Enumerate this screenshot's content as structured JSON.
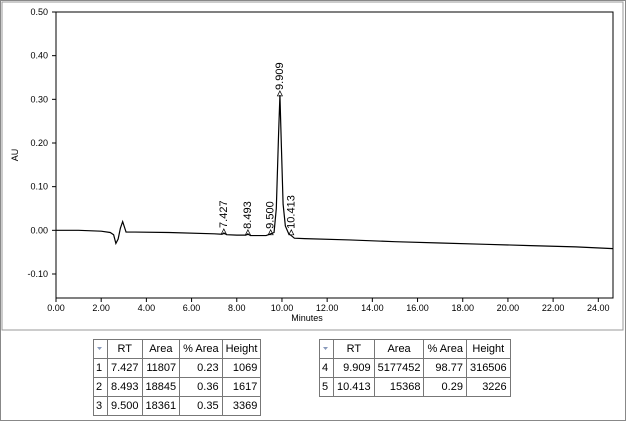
{
  "chart_data": {
    "type": "line",
    "x_label": "Minutes",
    "y_label": "AU",
    "xlim": [
      0,
      24.65
    ],
    "ylim": [
      -0.155,
      0.5
    ],
    "xticks": [
      {
        "value": 0,
        "label": "0.00"
      },
      {
        "value": 2,
        "label": "2.00"
      },
      {
        "value": 4,
        "label": "4.00"
      },
      {
        "value": 6,
        "label": "6.00"
      },
      {
        "value": 8,
        "label": "8.00"
      },
      {
        "value": 10,
        "label": "10.00"
      },
      {
        "value": 12,
        "label": "12.00"
      },
      {
        "value": 14,
        "label": "14.00"
      },
      {
        "value": 16,
        "label": "16.00"
      },
      {
        "value": 18,
        "label": "18.00"
      },
      {
        "value": 20,
        "label": "20.00"
      },
      {
        "value": 22,
        "label": "22.00"
      },
      {
        "value": 24,
        "label": "24.00"
      }
    ],
    "yticks": [
      {
        "value": -0.1,
        "label": "-0.10"
      },
      {
        "value": 0,
        "label": "0.00"
      },
      {
        "value": 0.1,
        "label": "0.10"
      },
      {
        "value": 0.2,
        "label": "0.20"
      },
      {
        "value": 0.3,
        "label": "0.30"
      },
      {
        "value": 0.4,
        "label": "0.40"
      },
      {
        "value": 0.5,
        "label": "0.50"
      }
    ],
    "color": "#000000",
    "x": [
      0,
      1,
      2,
      2.4,
      2.55,
      2.65,
      2.75,
      2.85,
      2.95,
      3.1,
      3.5,
      5,
      7,
      7.35,
      7.43,
      7.55,
      8,
      8.4,
      8.49,
      8.6,
      9.3,
      9.5,
      9.65,
      9.75,
      9.85,
      9.91,
      9.97,
      10.05,
      10.15,
      10.3,
      10.41,
      10.55,
      11,
      13,
      15,
      17,
      19,
      21,
      23,
      24.65
    ],
    "values": [
      0.0,
      0.0,
      -0.002,
      -0.005,
      -0.01,
      -0.03,
      -0.02,
      0.005,
      0.02,
      -0.004,
      -0.004,
      -0.005,
      -0.008,
      -0.009,
      -0.006,
      -0.01,
      -0.011,
      -0.011,
      -0.008,
      -0.012,
      -0.012,
      -0.008,
      -0.005,
      0.05,
      0.22,
      0.31,
      0.2,
      0.06,
      0.01,
      -0.008,
      -0.012,
      -0.018,
      -0.019,
      -0.022,
      -0.026,
      -0.029,
      -0.032,
      -0.035,
      -0.038,
      -0.042
    ],
    "peak_labels": [
      {
        "value": 7.427,
        "label": "7.427"
      },
      {
        "value": 8.493,
        "label": "8.493"
      },
      {
        "value": 9.5,
        "label": "9.500"
      },
      {
        "value": 9.909,
        "label": "9.909"
      },
      {
        "value": 10.413,
        "label": "10.413"
      }
    ]
  },
  "columns": [
    "RT",
    "Area",
    "% Area",
    "Height"
  ],
  "tables": [
    {
      "rows": [
        [
          "1",
          "7.427",
          "11807",
          "0.23",
          "1069"
        ],
        [
          "2",
          "8.493",
          "18845",
          "0.36",
          "1617"
        ],
        [
          "3",
          "9.500",
          "18361",
          "0.35",
          "3369"
        ]
      ]
    },
    {
      "rows": [
        [
          "4",
          "9.909",
          "5177452",
          "98.77",
          "316506"
        ],
        [
          "5",
          "10.413",
          "15368",
          "0.29",
          "3226"
        ]
      ]
    }
  ]
}
